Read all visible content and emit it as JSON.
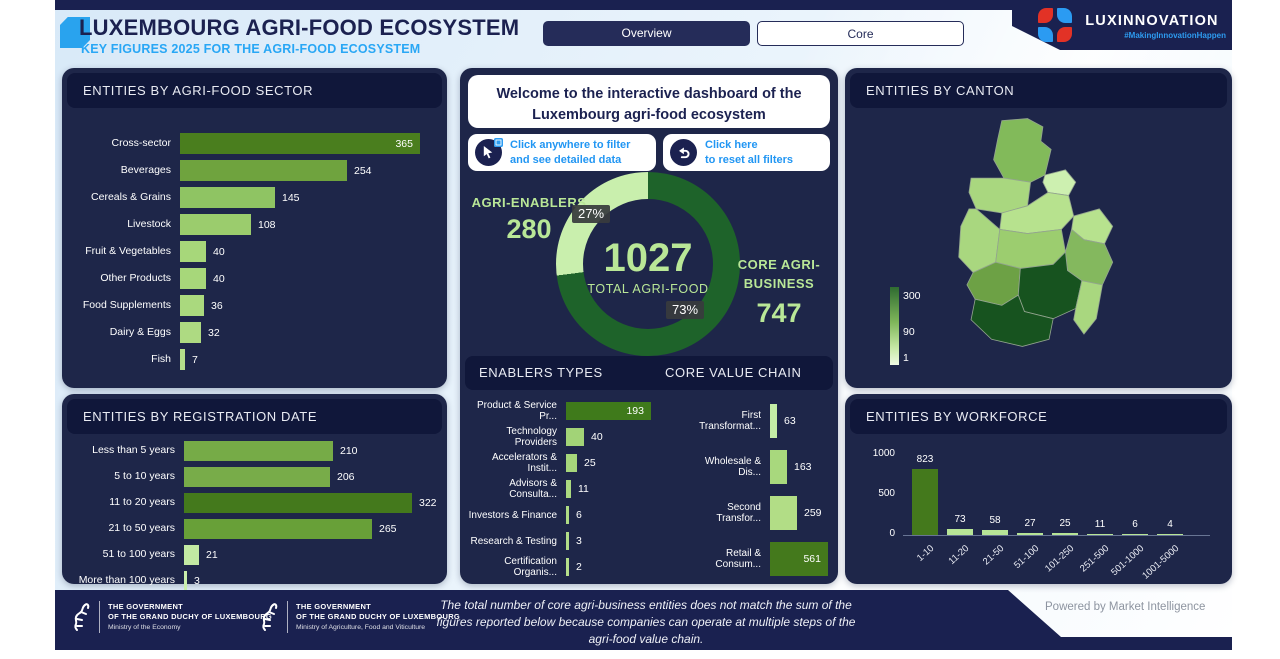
{
  "header": {
    "title": "LUXEMBOURG AGRI-FOOD ECOSYSTEM",
    "subtitle": "KEY FIGURES 2025 FOR THE AGRI-FOOD ECOSYSTEM",
    "tab_overview": "Overview",
    "tab_core": "Core",
    "brand_name": "LUXINNOVATION",
    "brand_tagline": "#MakingInnovationHappen"
  },
  "center": {
    "welcome_line1": "Welcome to the interactive dashboard of the",
    "welcome_line2": "Luxembourg agri-food ecosystem",
    "hint_filter_line1": "Click anywhere to filter",
    "hint_filter_line2": "and see detailed data",
    "hint_reset_line1": "Click here",
    "hint_reset_line2": "to reset all filters",
    "donut": {
      "total": "1027",
      "total_label": "TOTAL AGRI-FOOD",
      "left_label": "AGRI-ENABLERS",
      "left_value": "280",
      "left_pct": "27%",
      "right_label_line1": "CORE AGRI-",
      "right_label_line2": "BUSINESS",
      "right_value": "747",
      "right_pct": "73%",
      "pct_dark": 73,
      "color_dark": "#1e632a",
      "color_light": "#c9efad"
    }
  },
  "sector": {
    "title": "ENTITIES BY AGRI-FOOD SECTOR",
    "type": "bar",
    "categories": [
      "Cross-sector",
      "Beverages",
      "Cereals & Grains",
      "Livestock",
      "Fruit & Vegetables",
      "Other Products",
      "Food Supplements",
      "Dairy & Eggs",
      "Fish"
    ],
    "values": [
      365,
      254,
      145,
      108,
      40,
      40,
      36,
      32,
      7
    ],
    "colors": [
      "#4a7e1e",
      "#6fa33e",
      "#8fc463",
      "#9bcc6d",
      "#a7d77a",
      "#a7d77a",
      "#aad97e",
      "#aeda82",
      "#b5df8b"
    ],
    "inside": [
      true,
      false,
      false,
      false,
      false,
      false,
      false,
      false,
      false
    ]
  },
  "registration": {
    "title": "ENTITIES BY REGISTRATION DATE",
    "type": "bar",
    "categories": [
      "Less than 5 years",
      "5 to 10 years",
      "11 to 20 years",
      "21 to 50 years",
      "51 to 100 years",
      "More than 100 years"
    ],
    "values": [
      210,
      206,
      322,
      265,
      21,
      3
    ],
    "colors": [
      "#76ab47",
      "#78ac49",
      "#44791c",
      "#68a038",
      "#c2e9a3",
      "#c9eeab"
    ],
    "inside": [
      false,
      false,
      false,
      false,
      false,
      false
    ]
  },
  "enablers": {
    "title": "ENABLERS TYPES",
    "type": "bar",
    "categories": [
      "Product & Service Pr...",
      "Technology Providers",
      "Accelerators & Instit...",
      "Advisors & Consulta...",
      "Investors & Finance",
      "Research & Testing",
      "Certification Organis..."
    ],
    "values": [
      193,
      40,
      25,
      11,
      6,
      3,
      2
    ],
    "colors": [
      "#3f7a1b",
      "#a2d377",
      "#a6d67b",
      "#abd980",
      "#aedb84",
      "#b2dd88",
      "#b5df8b"
    ],
    "inside": [
      true,
      false,
      false,
      false,
      false,
      false,
      false
    ]
  },
  "value_chain": {
    "title": "CORE VALUE CHAIN",
    "type": "bar",
    "categories": [
      "First Transformat...",
      "Wholesale & Dis...",
      "Second Transfor...",
      "Retail & Consum..."
    ],
    "values": [
      63,
      163,
      259,
      561
    ],
    "colors": [
      "#c4eda6",
      "#a8d87d",
      "#b2dd86",
      "#44791c"
    ],
    "inside": [
      false,
      false,
      false,
      true
    ]
  },
  "canton": {
    "title": "ENTITIES BY CANTON",
    "type": "choropleth-map",
    "legend": {
      "max": "300",
      "mid": "90",
      "min": "1"
    },
    "region_colors": [
      "#82ba5a",
      "#a9d77f",
      "#cdf0b0",
      "#b7e28e",
      "#a9d77f",
      "#b7e28e",
      "#9ccd6f",
      "#84b85e",
      "#6da145",
      "#17531f",
      "#a9d77f",
      "#17531f"
    ]
  },
  "workforce": {
    "title": "ENTITIES BY WORKFORCE",
    "type": "column",
    "categories": [
      "1-10",
      "11-20",
      "21-50",
      "51-100",
      "101-250",
      "251-500",
      "501-1000",
      "1001-5000"
    ],
    "values": [
      823,
      73,
      58,
      27,
      25,
      11,
      6,
      4
    ],
    "colors": [
      "#44791c",
      "#b7e596",
      "#b7e596",
      "#b7e596",
      "#b7e596",
      "#b7e596",
      "#b7e596",
      "#b7e596"
    ],
    "y_ticks": [
      "1000",
      "500",
      "0"
    ],
    "ylim": [
      0,
      1000
    ]
  },
  "footer": {
    "gov1_l1": "THE GOVERNMENT",
    "gov1_l2": "OF THE GRAND DUCHY OF LUXEMBOURG",
    "gov1_l3": "Ministry of the Economy",
    "gov2_l1": "THE GOVERNMENT",
    "gov2_l2": "OF THE GRAND DUCHY OF LUXEMBOURG",
    "gov2_l3": "Ministry of Agriculture, Food and Viticulture",
    "note_line1": "The total number of core agri-business entities does not match the sum of the",
    "note_line2": "figures reported below because companies can operate at multiple steps of the",
    "note_line3": "agri-food value chain.",
    "powered": "Powered by Market Intelligence"
  }
}
